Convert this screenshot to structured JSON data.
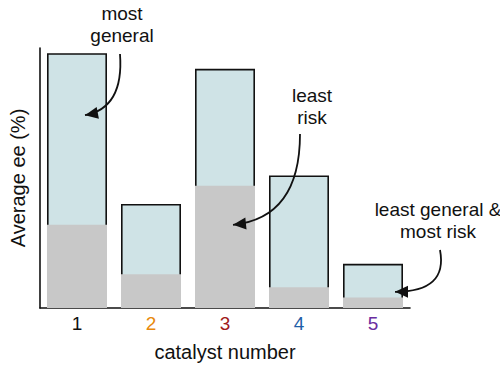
{
  "chart_data": {
    "type": "bar",
    "stacked": false,
    "grid": false,
    "tick_labels": "x",
    "x_label": "catalyst number",
    "y_label": "Average ee (%)",
    "categories": [
      "1",
      "2",
      "3",
      "4",
      "5"
    ],
    "series": [
      {
        "color": "#cfe3e6",
        "values": [
          98,
          40,
          92,
          51,
          17
        ]
      },
      {
        "color": "#c8c8c8",
        "values": [
          32,
          13,
          47,
          8,
          4
        ]
      }
    ],
    "ylim": [
      0,
      100
    ],
    "annotations": [
      {
        "text": "most\ngeneral",
        "target": "1"
      },
      {
        "text": "least\nrisk",
        "target": "3"
      },
      {
        "text": "least general &\nmost risk",
        "target": "5"
      }
    ]
  }
}
